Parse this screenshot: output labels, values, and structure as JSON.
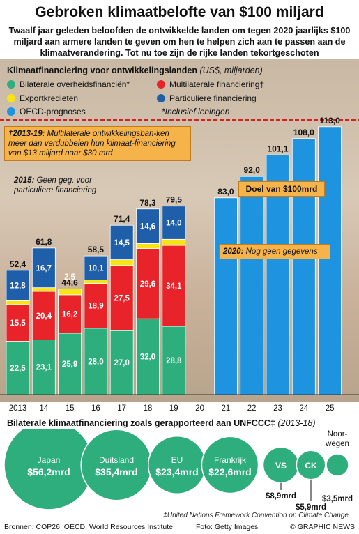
{
  "header": {
    "title": "Gebroken klimaatbelofte van $100 miljard",
    "subtitle": "Twaalf jaar geleden beloofden de ontwikkelde landen om tegen 2020 jaarlijks $100 miljard aan armere landen te geven om hen te helpen zich aan te passen aan de klimaatverandering. Tot nu toe zijn de rijke landen tekortgeschoten"
  },
  "legend": {
    "title": "Klimaatfinanciering voor ontwikkelingslanden",
    "units": "(US$, miljarden)",
    "items": [
      {
        "label": "Bilaterale overheidsfinanciën*",
        "color": "#2fae7d"
      },
      {
        "label": "Multilaterale financiering†",
        "color": "#e8232a"
      },
      {
        "label": "Exportkredieten",
        "color": "#f6e514"
      },
      {
        "label": "Particuliere financiering",
        "color": "#1f5ea8"
      },
      {
        "label": "OECD-prognoses",
        "color": "#1e94e0"
      }
    ],
    "footnote": "*Inclusief leningen"
  },
  "notes": {
    "multilateral_title": "†2013-19:",
    "multilateral_text": "Multilaterale ontwikkelingsban-ken meer dan verdubbelen hun klimaat-financiering van $13 miljard naar $30 mrd",
    "no_private_title": "2015:",
    "no_private_text": "Geen geg. voor particuliere financiering",
    "goal": "Doel van $100mrd",
    "no_data_title": "2020:",
    "no_data_text": "Nog geen gegevens"
  },
  "chart_data": [
    {
      "type": "bar",
      "stacked": true,
      "title": "Klimaatfinanciering voor ontwikkelingslanden",
      "units": "(US$, miljarden)",
      "categories": [
        "2013",
        "14",
        "15",
        "16",
        "17",
        "18",
        "19",
        "20",
        "21",
        "22",
        "23",
        "24",
        "25"
      ],
      "series": [
        {
          "name": "Bilaterale overheidsfinanciën*",
          "values": [
            22.5,
            23.1,
            25.9,
            28.0,
            27.0,
            32.0,
            28.8,
            null,
            null,
            null,
            null,
            null,
            null
          ],
          "labels": [
            "22,5",
            "23,1",
            "25,9",
            "28,0",
            "27,0",
            "32,0",
            "28,8",
            "",
            "",
            "",
            "",
            "",
            ""
          ]
        },
        {
          "name": "Multilaterale financiering†",
          "values": [
            15.5,
            20.4,
            16.2,
            18.9,
            27.5,
            29.6,
            34.1,
            null,
            null,
            null,
            null,
            null,
            null
          ],
          "labels": [
            "15,5",
            "20,4",
            "16,2",
            "18,9",
            "27,5",
            "29,6",
            "34,1",
            "",
            "",
            "",
            "",
            "",
            ""
          ]
        },
        {
          "name": "Exportkredieten",
          "values": [
            1.6,
            1.6,
            2.5,
            1.5,
            2.4,
            2.1,
            2.6,
            null,
            null,
            null,
            null,
            null,
            null
          ],
          "labels": [
            "1,6",
            "1,6",
            "2,5",
            "1,5",
            "2,4",
            "2,1",
            "2,6",
            "",
            "",
            "",
            "",
            "",
            ""
          ]
        },
        {
          "name": "Particuliere financiering",
          "values": [
            12.8,
            16.7,
            0,
            10.1,
            14.5,
            14.6,
            14.0,
            null,
            null,
            null,
            null,
            null,
            null
          ],
          "labels": [
            "12,8",
            "16,7",
            "",
            "10,1",
            "14,5",
            "14,6",
            "14,0",
            "",
            "",
            "",
            "",
            "",
            ""
          ]
        },
        {
          "name": "OECD-prognoses",
          "values": [
            null,
            null,
            null,
            null,
            null,
            null,
            null,
            null,
            83.0,
            92.0,
            101.1,
            108.0,
            113.0
          ],
          "labels": [
            "",
            "",
            "",
            "",
            "",
            "",
            "",
            "",
            "83,0",
            "92,0",
            "101,1",
            "108,0",
            "113,0"
          ]
        }
      ],
      "totals": [
        52.4,
        61.8,
        44.6,
        58.5,
        71.4,
        78.3,
        79.5,
        null,
        83.0,
        92.0,
        101.1,
        108.0,
        113.0
      ],
      "total_labels": [
        "52,4",
        "61,8",
        "44,6",
        "58,5",
        "71,4",
        "78,3",
        "79,5",
        "",
        "83,0",
        "92,0",
        "101,1",
        "108,0",
        "113,0"
      ],
      "goal_line": 100,
      "ylim": [
        0,
        120
      ]
    },
    {
      "type": "bubble",
      "title": "Bilaterale klimaatfinanciering zoals gerapporteerd aan UNFCCC‡",
      "period": "(2013-18)",
      "items": [
        {
          "name": "Japan",
          "value": 56.2,
          "label": "$56,2mrd"
        },
        {
          "name": "Duitsland",
          "value": 35.4,
          "label": "$35,4mrd"
        },
        {
          "name": "EU",
          "value": 23.4,
          "label": "$23,4mrd"
        },
        {
          "name": "Frankrijk",
          "value": 22.6,
          "label": "$22,6mrd"
        },
        {
          "name": "VS",
          "value": 8.9,
          "label": "$8,9mrd"
        },
        {
          "name": "CK",
          "value": 5.9,
          "label": "$5,9mrd"
        },
        {
          "name": "Noor-wegen",
          "value": 3.5,
          "label": "$3,5mrd"
        }
      ],
      "footnote": "‡United Nations Framework Convention on Climate Change"
    }
  ],
  "footer": {
    "sources": "Bronnen: COP26, OECD, World Resources Institute",
    "photo": "Foto: Getty Images",
    "brand": "© GRAPHIC NEWS"
  }
}
